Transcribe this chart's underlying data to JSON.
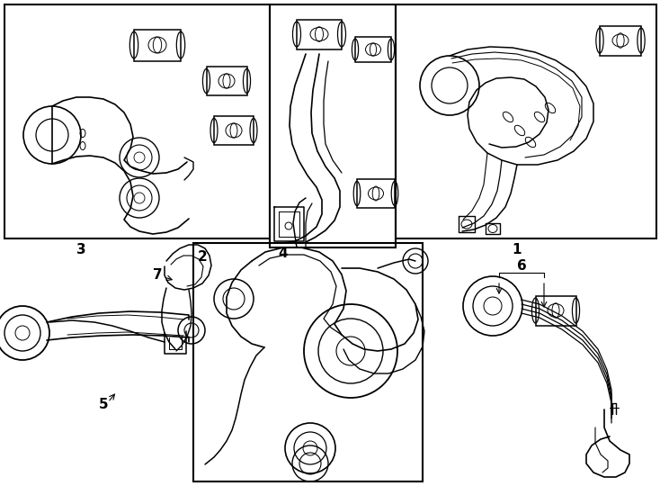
{
  "background_color": "#ffffff",
  "line_color": "#000000",
  "line_width": 1.0,
  "figure_width": 7.34,
  "figure_height": 5.4,
  "dpi": 100
}
